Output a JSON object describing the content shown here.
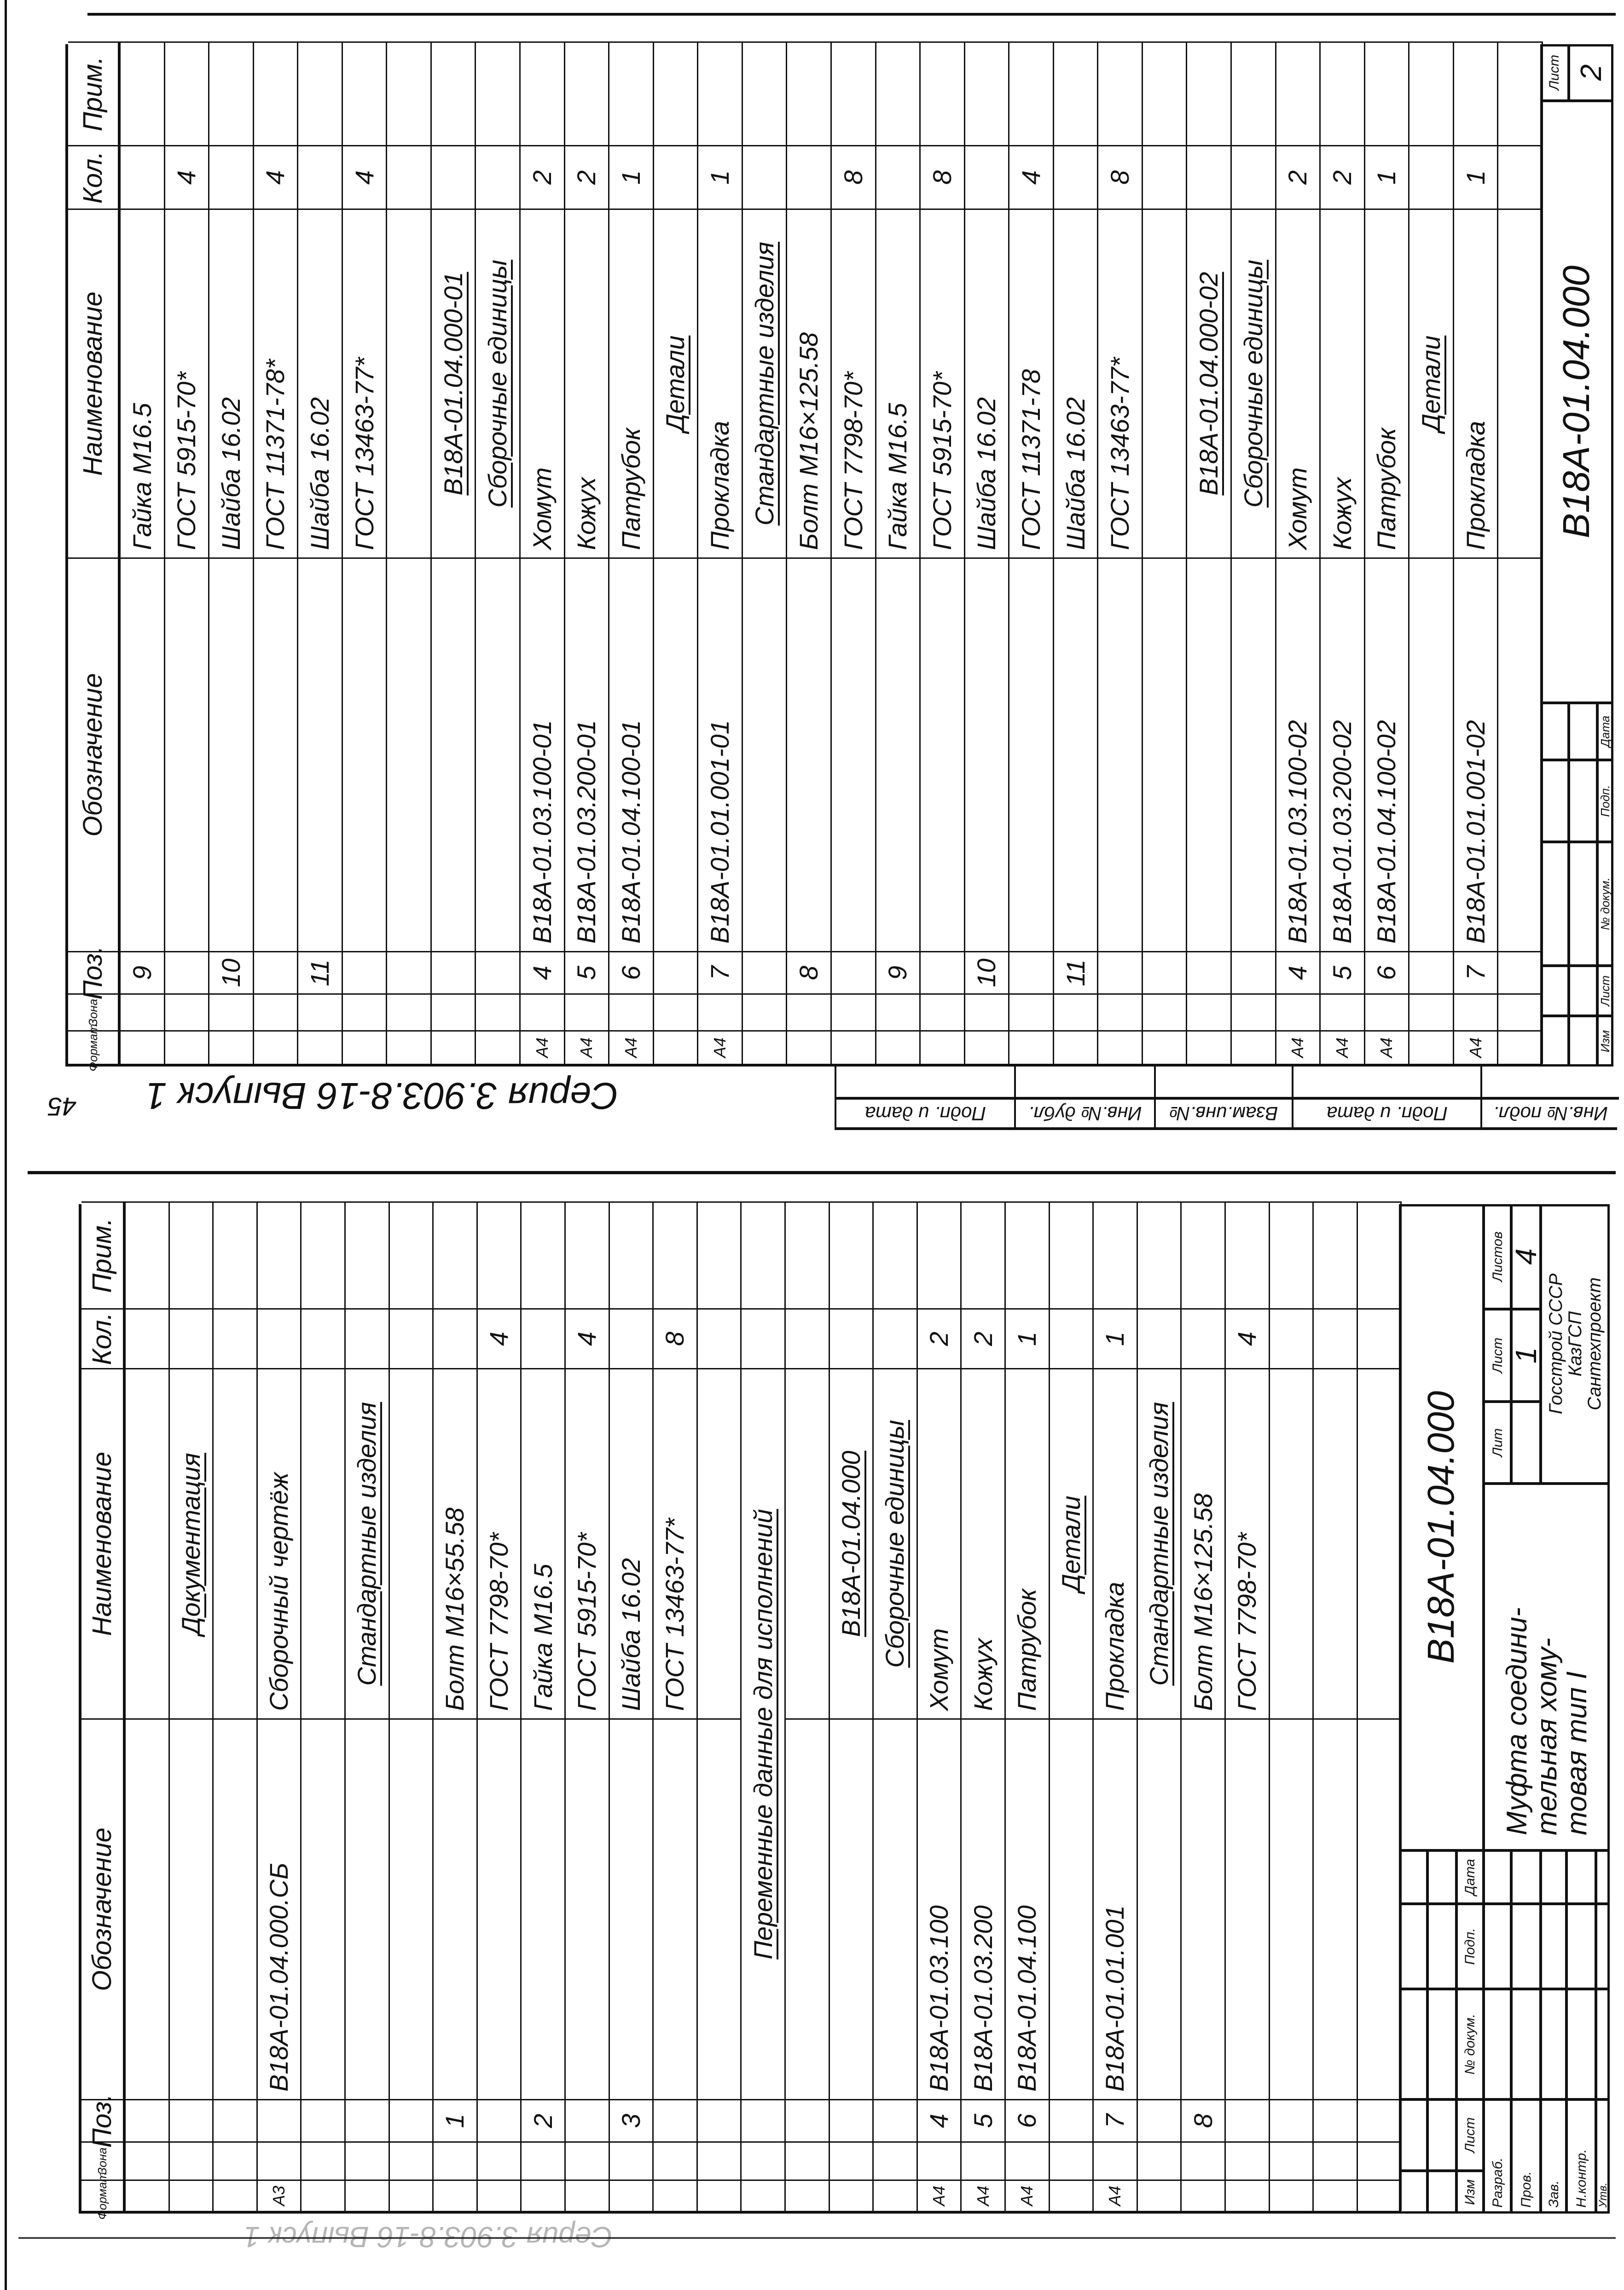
{
  "page_number": "45",
  "series_caption": "Серия 3.903.8-16 Выпуск 1",
  "stamp_labels": [
    "Подп. и дата",
    "Инв.№ дубл.",
    "Взам.инв.№",
    "Подп. и дата",
    "Инв.№ подл."
  ],
  "sheets": [
    {
      "headers": {
        "format": "Формат",
        "zone": "Зона",
        "pos": "Поз.",
        "designation": "Обозначение",
        "name": "Наименование",
        "qty": "Кол.",
        "note": "Прим."
      },
      "rows": [
        {
          "pos": "9",
          "name": "Гайка М16.5"
        },
        {
          "name": "ГОСТ 5915-70*",
          "qty": "4"
        },
        {
          "pos": "10",
          "name": "Шайба 16.02"
        },
        {
          "name": "ГОСТ 11371-78*",
          "qty": "4"
        },
        {
          "pos": "11",
          "name": "Шайба 16.02"
        },
        {
          "name": "ГОСТ 13463-77*",
          "qty": "4"
        },
        {},
        {
          "name": "В18А-01.04.000-01",
          "style": "heading"
        },
        {
          "name": "Сборочные единицы",
          "style": "heading"
        },
        {
          "format": "А4",
          "pos": "4",
          "designation": "В18А-01.03.100-01",
          "name": "Хомут",
          "qty": "2"
        },
        {
          "format": "А4",
          "pos": "5",
          "designation": "В18А-01.03.200-01",
          "name": "Кожух",
          "qty": "2"
        },
        {
          "format": "А4",
          "pos": "6",
          "designation": "В18А-01.04.100-01",
          "name": "Патрубок",
          "qty": "1"
        },
        {
          "name": "Детали",
          "style": "heading"
        },
        {
          "format": "А4",
          "pos": "7",
          "designation": "В18А-01.01.001-01",
          "name": "Прокладка",
          "qty": "1"
        },
        {
          "name": "Стандартные изделия",
          "style": "heading"
        },
        {
          "pos": "8",
          "name": "Болт М16×125.58"
        },
        {
          "name": "ГОСТ 7798-70*",
          "qty": "8"
        },
        {
          "pos": "9",
          "name": "Гайка М16.5"
        },
        {
          "name": "ГОСТ 5915-70*",
          "qty": "8"
        },
        {
          "pos": "10",
          "name": "Шайба 16.02"
        },
        {
          "name": "ГОСТ 11371-78",
          "qty": "4"
        },
        {
          "pos": "11",
          "name": "Шайба 16.02"
        },
        {
          "name": "ГОСТ 13463-77*",
          "qty": "8"
        },
        {},
        {
          "name": "В18А-01.04.000-02",
          "style": "heading"
        },
        {
          "name": "Сборочные единицы",
          "style": "heading"
        },
        {
          "format": "А4",
          "pos": "4",
          "designation": "В18А-01.03.100-02",
          "name": "Хомут",
          "qty": "2"
        },
        {
          "format": "А4",
          "pos": "5",
          "designation": "В18А-01.03.200-02",
          "name": "Кожух",
          "qty": "2"
        },
        {
          "format": "А4",
          "pos": "6",
          "designation": "В18А-01.04.100-02",
          "name": "Патрубок",
          "qty": "1"
        },
        {
          "name": "Детали",
          "style": "heading"
        },
        {
          "format": "А4",
          "pos": "7",
          "designation": "В18А-01.01.001-02",
          "name": "Прокладка",
          "qty": "1"
        },
        {}
      ],
      "title_block": {
        "designation": "В18А-01.04.000",
        "sheet_label": "Лист",
        "sheet_number": "2",
        "grid_labels": [
          "Изм",
          "Лист",
          "№ докум.",
          "Подп.",
          "Дата"
        ]
      }
    },
    {
      "headers": {
        "format": "Формат",
        "zone": "Зона",
        "pos": "Поз.",
        "designation": "Обозначение",
        "name": "Наименование",
        "qty": "Кол.",
        "note": "Прим."
      },
      "rows": [
        {},
        {
          "name": "Документация",
          "style": "heading"
        },
        {},
        {
          "format": "А3",
          "designation": "В18А-01.04.000.СБ",
          "name": "Сборочный чертёж"
        },
        {},
        {
          "name": "Стандартные изделия",
          "style": "heading"
        },
        {},
        {
          "pos": "1",
          "name": "Болт М16×55.58"
        },
        {
          "name": "ГОСТ 7798-70*",
          "qty": "4"
        },
        {
          "pos": "2",
          "name": "Гайка М16.5"
        },
        {
          "name": "ГОСТ 5915-70*",
          "qty": "4"
        },
        {
          "pos": "3",
          "name": "Шайба 16.02"
        },
        {
          "name": "ГОСТ 13463-77*",
          "qty": "8"
        },
        {},
        {
          "name": "Переменные данные для исполнений",
          "style": "heading-wide"
        },
        {},
        {
          "name": "В18А-01.04.000",
          "style": "heading"
        },
        {
          "name": "Сборочные единицы",
          "style": "heading"
        },
        {
          "format": "А4",
          "pos": "4",
          "designation": "В18А-01.03.100",
          "name": "Хомут",
          "qty": "2"
        },
        {
          "format": "А4",
          "pos": "5",
          "designation": "В18А-01.03.200",
          "name": "Кожух",
          "qty": "2"
        },
        {
          "format": "А4",
          "pos": "6",
          "designation": "В18А-01.04.100",
          "name": "Патрубок",
          "qty": "1"
        },
        {
          "name": "Детали",
          "style": "heading"
        },
        {
          "format": "А4",
          "pos": "7",
          "designation": "В18А-01.01.001",
          "name": "Прокладка",
          "qty": "1"
        },
        {
          "name": "Стандартные изделия",
          "style": "heading"
        },
        {
          "pos": "8",
          "name": "Болт М16×125.58"
        },
        {
          "name": "ГОСТ 7798-70*",
          "qty": "4"
        },
        {},
        {},
        {}
      ],
      "title_block": {
        "designation": "В18А-01.04.000",
        "title_lines": [
          "Муфта соедини-",
          "тельная хому-",
          "товая тип I"
        ],
        "lit_label": "Лит",
        "sheet_label": "Лист",
        "sheets_label": "Листов",
        "sheet_number": "1",
        "sheets_total": "4",
        "org_lines": [
          "Госстрой СССР",
          "КазГСП",
          "Сантехпроект"
        ],
        "grid_labels": [
          "Изм",
          "Лист",
          "№ докум.",
          "Подп.",
          "Дата"
        ],
        "role_labels": [
          "Разраб.",
          "Пров.",
          "Зав.",
          "Н.контр.",
          "Утв."
        ]
      }
    }
  ]
}
